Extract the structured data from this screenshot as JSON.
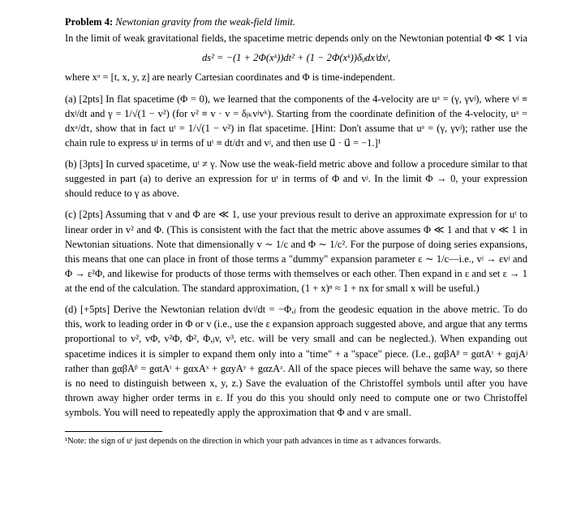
{
  "problem": {
    "heading_bold": "Problem 4:",
    "heading_italic": "Newtonian gravity from the weak-field limit.",
    "intro1": "In the limit of weak gravitational fields, the spacetime metric depends only on the Newtonian potential Φ ≪ 1 via",
    "metric_eqn": "ds² = −(1 + 2Φ(xᵏ))dt² + (1 − 2Φ(xᵏ))δᵢⱼdxⁱdxʲ,",
    "intro2": "where xᵃ = [t, x, y, z] are nearly Cartesian coordinates and Φ is time-independent."
  },
  "parts": {
    "a": {
      "label": "(a) [2pts]",
      "text": "In flat spacetime (Φ = 0), we learned that the components of the 4-velocity are uᵃ = (γ, γvʲ), where vʲ ≡ dxʲ/dt and γ = 1/√(1 − v²) (for v² ≡ v · v = δⱼₖvʲvᵏ). Starting from the coordinate definition of the 4-velocity, uᵃ = dxᵃ/dτ, show that in fact uᵗ = 1/√(1 − v²) in flat spacetime. [Hint: Don't assume that uᵃ = (γ, γvʲ); rather use the chain rule to express uʲ in terms of uᵗ ≡ dt/dτ and vʲ, and then use u⃗ · u⃗ = −1.]¹"
    },
    "b": {
      "label": "(b) [3pts]",
      "text": "In curved spacetime, uᵗ ≠ γ. Now use the weak-field metric above and follow a procedure similar to that suggested in part (a) to derive an expression for uᵗ in terms of Φ and vʲ. In the limit Φ → 0, your expression should reduce to γ as above."
    },
    "c": {
      "label": "(c) [2pts]",
      "text": "Assuming that v and Φ are ≪ 1, use your previous result to derive an approximate expression for uᵗ to linear order in v² and Φ. (This is consistent with the fact that the metric above assumes Φ ≪ 1 and that v ≪ 1 in Newtonian situations. Note that dimensionally v ∼ 1/c and Φ ∼ 1/c². For the purpose of doing series expansions, this means that one can place in front of those terms a \"dummy\" expansion parameter ε ∼ 1/c—i.e., vʲ → εvʲ and Φ → ε²Φ, and likewise for products of those terms with themselves or each other. Then expand in ε and set ε → 1 at the end of the calculation. The standard approximation, (1 + x)ⁿ ≈ 1 + nx for small x will be useful.)"
    },
    "d": {
      "label": "(d) [+5pts]",
      "text": "Derive the Newtonian relation dvʲ/dt = −Φ,ⱼ from the geodesic equation in the above metric. To do this, work to leading order in Φ or v (i.e., use the ε expansion approach suggested above, and argue that any terms proportional to v², vΦ, v²Φ, Φ², Φ,ⱼv, v³, etc. will be very small and can be neglected.). When expanding out spacetime indices it is simpler to expand them only into a \"time\" + a \"space\" piece. (I.e., gαβAᵝ = gαtAᵗ + gαjAʲ rather than gαβAᵝ = gαtAᵗ + gαxAˣ + gαyAʸ + gαzAᶻ. All of the space pieces will behave the same way, so there is no need to distinguish between x, y, z.) Save the evaluation of the Christoffel symbols until after you have thrown away higher order terms in ε. If you do this you should only need to compute one or two Christoffel symbols. You will need to repeatedly apply the approximation that Φ and v are small."
    }
  },
  "footnote": {
    "marker": "¹",
    "text": "Note: the sign of uᵗ just depends on the direction in which your path advances in time as τ advances forwards."
  }
}
